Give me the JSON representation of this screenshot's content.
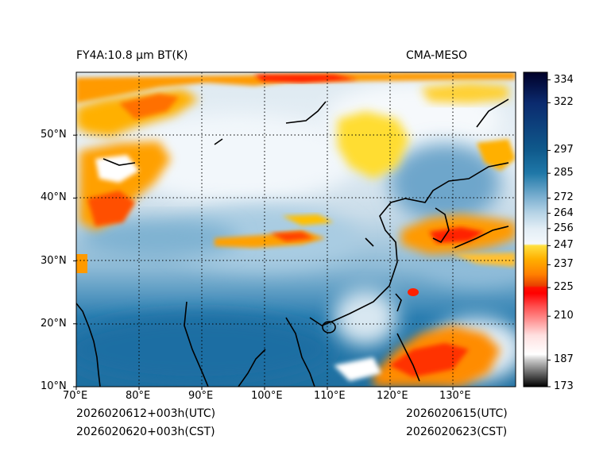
{
  "figure": {
    "title_left": "FY4A:10.8 µm BT(K)",
    "title_right": "CMA-MESO",
    "footer_left_1": "2026020612+003h(UTC)",
    "footer_left_2": "2026020620+003h(CST)",
    "footer_right_1": "2026020615(UTC)",
    "footer_right_2": "2026020623(CST)"
  },
  "map": {
    "lon_range": [
      70,
      140
    ],
    "lat_range": [
      10,
      60
    ],
    "lon_ticks": [
      {
        "value": 70,
        "label": "70°E"
      },
      {
        "value": 80,
        "label": "80°E"
      },
      {
        "value": 90,
        "label": "90°E"
      },
      {
        "value": 100,
        "label": "100°E"
      },
      {
        "value": 110,
        "label": "110°E"
      },
      {
        "value": 120,
        "label": "120°E"
      },
      {
        "value": 130,
        "label": "130°E"
      }
    ],
    "lat_ticks": [
      {
        "value": 10,
        "label": "10°N"
      },
      {
        "value": 20,
        "label": "20°N"
      },
      {
        "value": 30,
        "label": "30°N"
      },
      {
        "value": 40,
        "label": "40°N"
      },
      {
        "value": 50,
        "label": "50°N"
      }
    ],
    "gridlines": "dotted"
  },
  "colorbar": {
    "vmin": 173,
    "vmax": 338,
    "ticks": [
      173,
      187,
      210,
      225,
      237,
      247,
      256,
      264,
      272,
      285,
      297,
      322,
      334
    ],
    "stops": [
      {
        "v": 173,
        "color": "#000000"
      },
      {
        "v": 187,
        "color": "#c8c8c8"
      },
      {
        "v": 190,
        "color": "#ffffff"
      },
      {
        "v": 200,
        "color": "#ffe0e0"
      },
      {
        "v": 215,
        "color": "#ff5050"
      },
      {
        "v": 222,
        "color": "#ff0000"
      },
      {
        "v": 225,
        "color": "#ff1000"
      },
      {
        "v": 226,
        "color": "#e84000"
      },
      {
        "v": 232,
        "color": "#ff8000"
      },
      {
        "v": 240,
        "color": "#ffb000"
      },
      {
        "v": 247,
        "color": "#ffe040"
      },
      {
        "v": 248,
        "color": "#f4f8fc"
      },
      {
        "v": 256,
        "color": "#e2edf5"
      },
      {
        "v": 264,
        "color": "#b7d4e6"
      },
      {
        "v": 272,
        "color": "#7fb2d2"
      },
      {
        "v": 285,
        "color": "#1f78a8"
      },
      {
        "v": 297,
        "color": "#0f5a8c"
      },
      {
        "v": 322,
        "color": "#0b2a6e"
      },
      {
        "v": 338,
        "color": "#000028"
      }
    ]
  }
}
